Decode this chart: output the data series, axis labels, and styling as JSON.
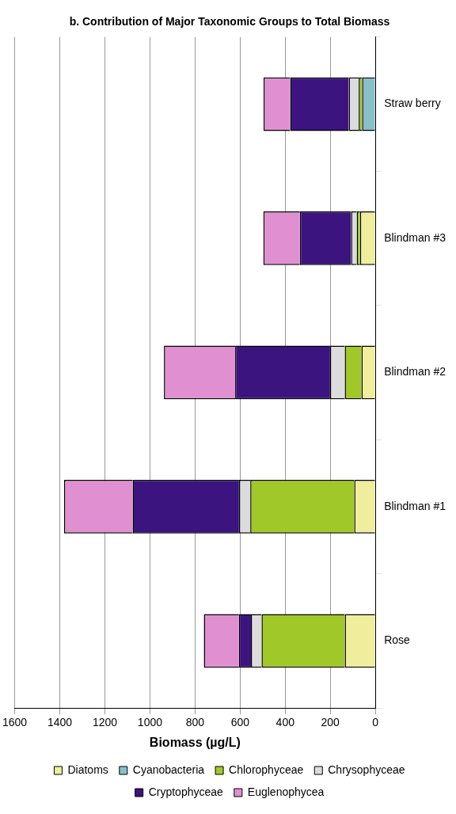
{
  "chart_data": {
    "type": "bar",
    "stacked": true,
    "orientation": "horizontal",
    "title": "b. Contribution of Major Taxonomic Groups to Total Biomass",
    "xlabel": "Biomass (µg/L)",
    "categories": [
      "Straw berry",
      "Blindman #3",
      "Blindman #2",
      "Blindman #1",
      "Rose"
    ],
    "series": [
      {
        "name": "Diatoms",
        "color": "#eeee9c",
        "values": [
          0,
          68,
          62,
          94,
          136
        ]
      },
      {
        "name": "Cyanobacteria",
        "color": "#88c0c8",
        "values": [
          59,
          0,
          0,
          0,
          0
        ]
      },
      {
        "name": "Chlorophyceae",
        "color": "#a0c828",
        "values": [
          15,
          15,
          74,
          461,
          369
        ]
      },
      {
        "name": "Chrysophyceae",
        "color": "#dcdcdc",
        "values": [
          44,
          25,
          65,
          50,
          47
        ]
      },
      {
        "name": "Cryptophyceae",
        "color": "#3c1480",
        "values": [
          260,
          227,
          421,
          472,
          53
        ]
      },
      {
        "name": "Euglenophycea",
        "color": "#e090d0",
        "values": [
          118,
          162,
          316,
          304,
          156
        ]
      }
    ],
    "xlim": [
      1600,
      0
    ],
    "xticks": [
      1600,
      1400,
      1200,
      1000,
      800,
      600,
      400,
      200,
      0
    ],
    "grid": "x",
    "legend": "bottom"
  }
}
